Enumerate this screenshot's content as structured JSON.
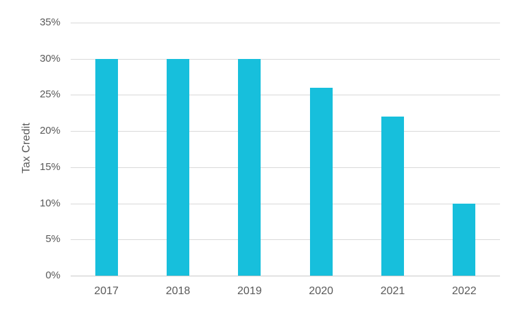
{
  "chart_data": {
    "type": "bar",
    "title": "",
    "categories": [
      "2017",
      "2018",
      "2019",
      "2020",
      "2021",
      "2022"
    ],
    "values": [
      30,
      30,
      30,
      26,
      22,
      10
    ],
    "xlabel": "",
    "ylabel": "Tax Credit",
    "ylim": [
      0,
      35
    ],
    "yticks": [
      0,
      5,
      10,
      15,
      20,
      25,
      30,
      35
    ],
    "ytick_labels": [
      "0%",
      "5%",
      "10%",
      "15%",
      "20%",
      "25%",
      "30%",
      "35%"
    ],
    "grid": "horizontal gridlines on, 5% steps",
    "legend": "none",
    "colors": {
      "bar": "#17bfdc",
      "gridline": "#d9d9d9",
      "axis_line": "#c9c9c9",
      "labels": "#595959",
      "background": "#ffffff"
    }
  }
}
